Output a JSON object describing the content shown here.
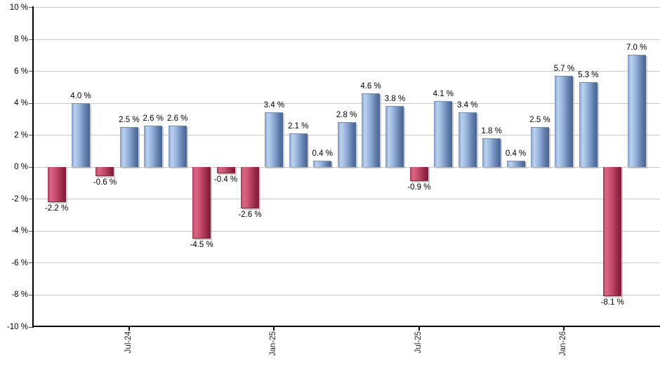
{
  "chart_data": {
    "type": "bar",
    "title": "",
    "xlabel": "",
    "ylabel": "",
    "background_color": "#ffffff",
    "grid": true,
    "grid_color": "#c9c9c9",
    "axis_color": "#000000",
    "label_color": "#000000",
    "positive_color": "#89a9d8",
    "negative_color": "#c2486a",
    "ylim": [
      -10,
      10
    ],
    "y_step": 2,
    "y_tick_labels": [
      "10 %",
      "8 %",
      "6 %",
      "4 %",
      "2 %",
      "0 %",
      "-2 %",
      "-4 %",
      "-6 %",
      "-8 %",
      "-10 %"
    ],
    "values": [
      -2.2,
      4.0,
      -0.6,
      2.5,
      2.6,
      2.6,
      -4.5,
      -0.4,
      -2.6,
      3.4,
      2.1,
      0.4,
      2.8,
      4.6,
      3.8,
      -0.9,
      4.1,
      3.4,
      1.8,
      0.4,
      2.5,
      5.7,
      5.3,
      -8.1,
      7.0
    ],
    "bar_labels": [
      "-2.2 %",
      "4.0 %",
      "-0.6 %",
      "2.5 %",
      "2.6 %",
      "2.6 %",
      "-4.5 %",
      "-0.4 %",
      "-2.6 %",
      "3.4 %",
      "2.1 %",
      "0.4 %",
      "2.8 %",
      "4.6 %",
      "3.8 %",
      "-0.9 %",
      "4.1 %",
      "3.4 %",
      "1.8 %",
      "0.4 %",
      "2.5 %",
      "5.7 %",
      "5.3 %",
      "-8.1 %",
      "7.0 %"
    ],
    "x_tick_labels": [
      {
        "bar_index": 3,
        "label": "Jul-24"
      },
      {
        "bar_index": 9,
        "label": "Jan-25"
      },
      {
        "bar_index": 15,
        "label": "Jul-25"
      },
      {
        "bar_index": 21,
        "label": "Jan-26"
      }
    ],
    "legend": null
  }
}
